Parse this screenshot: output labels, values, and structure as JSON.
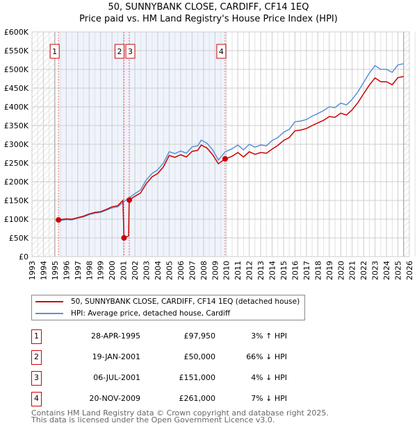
{
  "title": "50, SUNNYBANK CLOSE, CARDIFF, CF14 1EQ",
  "subtitle": "Price paid vs. HM Land Registry's House Price Index (HPI)",
  "chart_data": {
    "type": "line",
    "ylim": [
      0,
      600000
    ],
    "xlim": [
      1993,
      2026
    ],
    "yticks": [
      0,
      50000,
      100000,
      150000,
      200000,
      250000,
      300000,
      350000,
      400000,
      450000,
      500000,
      550000,
      600000
    ],
    "ytick_labels": [
      "£0",
      "£50K",
      "£100K",
      "£150K",
      "£200K",
      "£250K",
      "£300K",
      "£350K",
      "£400K",
      "£450K",
      "£500K",
      "£550K",
      "£600K"
    ],
    "xticks": [
      "1993",
      "1994",
      "1995",
      "1996",
      "1997",
      "1998",
      "1999",
      "2000",
      "2001",
      "2002",
      "2003",
      "2004",
      "2005",
      "2006",
      "2007",
      "2008",
      "2009",
      "2010",
      "2011",
      "2012",
      "2013",
      "2014",
      "2015",
      "2016",
      "2017",
      "2018",
      "2019",
      "2020",
      "2021",
      "2022",
      "2023",
      "2024",
      "2025",
      "2026"
    ],
    "colors": {
      "price": "#cc0000",
      "hpi": "#5b8fd4",
      "shade": "#eef3fc",
      "marker_border": "#cc0000"
    },
    "shaded_range": [
      1995.32,
      2009.89
    ],
    "hatch_ranges": [
      [
        1993,
        1995
      ],
      [
        2025.5,
        2026
      ]
    ],
    "series": [
      {
        "name": "hpi",
        "x": [
          1995.3,
          1996,
          1996.5,
          1997,
          1997.5,
          1998,
          1998.5,
          1999,
          1999.5,
          2000,
          2000.5,
          2001,
          2001.5,
          2002,
          2002.5,
          2003,
          2003.5,
          2004,
          2004.5,
          2005,
          2005.5,
          2006,
          2006.5,
          2007,
          2007.5,
          2007.8,
          2008.3,
          2008.8,
          2009.3,
          2009.9,
          2010.5,
          2011,
          2011.5,
          2012,
          2012.5,
          2013,
          2013.5,
          2014,
          2014.5,
          2015,
          2015.5,
          2016,
          2016.5,
          2017,
          2017.5,
          2018,
          2018.5,
          2019,
          2019.5,
          2020,
          2020.5,
          2021,
          2021.5,
          2022,
          2022.5,
          2023,
          2023.5,
          2024,
          2024.5,
          2025,
          2025.5
        ],
        "y": [
          95000,
          99000,
          98000,
          103000,
          106000,
          112000,
          116000,
          118000,
          124000,
          130000,
          133000,
          146000,
          157000,
          168000,
          178000,
          205000,
          222000,
          232000,
          250000,
          280000,
          275000,
          282000,
          276000,
          293000,
          296000,
          311000,
          303000,
          285000,
          258000,
          280000,
          288000,
          298000,
          285000,
          300000,
          292000,
          298000,
          296000,
          310000,
          318000,
          332000,
          340000,
          360000,
          362000,
          366000,
          375000,
          382000,
          390000,
          400000,
          398000,
          410000,
          405000,
          420000,
          440000,
          465000,
          490000,
          510000,
          500000,
          500000,
          492000,
          512000,
          515000
        ]
      },
      {
        "name": "price",
        "x": [
          1995.3,
          1996,
          1996.5,
          1997,
          1997.5,
          1998,
          1998.5,
          1999,
          1999.5,
          2000,
          2000.5,
          2000.95,
          2001.05,
          2001.45,
          2001.5,
          2002,
          2002.5,
          2003,
          2003.5,
          2004,
          2004.5,
          2005,
          2005.5,
          2006,
          2006.5,
          2007,
          2007.5,
          2007.8,
          2008.3,
          2008.8,
          2009.3,
          2009.9,
          2010.5,
          2011,
          2011.5,
          2012,
          2012.5,
          2013,
          2013.5,
          2014,
          2014.5,
          2015,
          2015.5,
          2016,
          2016.5,
          2017,
          2017.5,
          2018,
          2018.5,
          2019,
          2019.5,
          2020,
          2020.5,
          2021,
          2021.5,
          2022,
          2022.5,
          2023,
          2023.5,
          2024,
          2024.5,
          2025,
          2025.5
        ],
        "y": [
          97950,
          101000,
          100000,
          104000,
          108000,
          114000,
          118000,
          120000,
          126000,
          133000,
          136000,
          150000,
          50000,
          55000,
          151000,
          161000,
          170000,
          195000,
          213000,
          222000,
          240000,
          270000,
          265000,
          272000,
          266000,
          281000,
          284000,
          298000,
          290000,
          272000,
          248000,
          261000,
          268000,
          278000,
          266000,
          280000,
          273000,
          278000,
          276000,
          287000,
          297000,
          310000,
          318000,
          336000,
          338000,
          342000,
          350000,
          357000,
          364000,
          374000,
          372000,
          383000,
          378000,
          392000,
          411000,
          435000,
          458000,
          477000,
          467000,
          467000,
          459000,
          478000,
          481000
        ]
      }
    ],
    "sales": [
      {
        "label": "1",
        "x": 2001.05,
        "x_sale": 1995.32,
        "price": 97950
      },
      {
        "label": "2",
        "x_sale": 2001.05,
        "price": 50000
      },
      {
        "label": "3",
        "x_sale": 2001.51,
        "price": 151000
      },
      {
        "label": "4",
        "x_sale": 2009.89,
        "price": 261000
      }
    ]
  },
  "legend": [
    {
      "label": "50, SUNNYBANK CLOSE, CARDIFF, CF14 1EQ (detached house)",
      "color": "#cc0000"
    },
    {
      "label": "HPI: Average price, detached house, Cardiff",
      "color": "#5b8fd4"
    }
  ],
  "transactions": [
    {
      "num": "1",
      "date": "28-APR-1995",
      "price": "£97,950",
      "hpi": "3% ↑ HPI"
    },
    {
      "num": "2",
      "date": "19-JAN-2001",
      "price": "£50,000",
      "hpi": "66% ↓ HPI"
    },
    {
      "num": "3",
      "date": "06-JUL-2001",
      "price": "£151,000",
      "hpi": "4% ↓ HPI"
    },
    {
      "num": "4",
      "date": "20-NOV-2009",
      "price": "£261,000",
      "hpi": "7% ↓ HPI"
    }
  ],
  "footer": {
    "line1": "Contains HM Land Registry data © Crown copyright and database right 2025.",
    "line2": "This data is licensed under the Open Government Licence v3.0."
  }
}
